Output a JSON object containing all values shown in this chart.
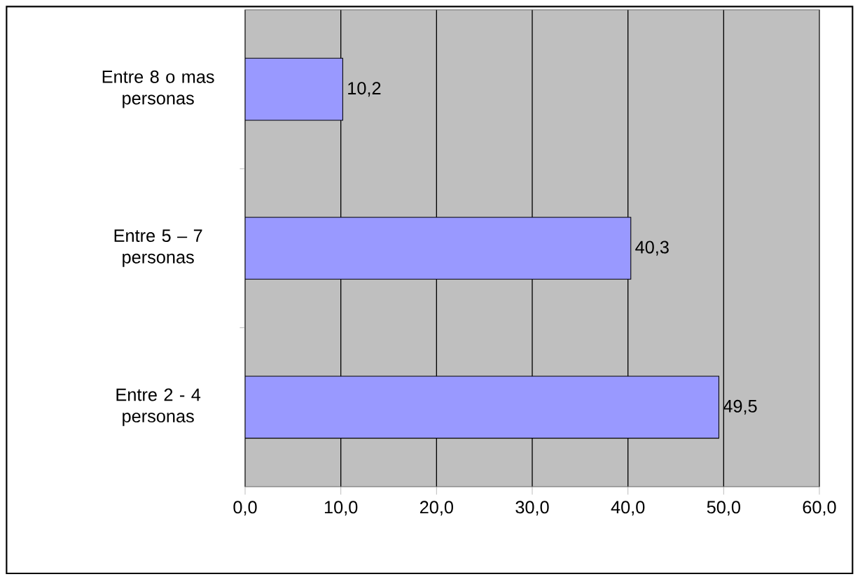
{
  "chart_data": {
    "type": "bar",
    "orientation": "horizontal",
    "categories": [
      "Entre 8 o mas personas",
      "Entre 5 – 7 personas",
      "Entre 2 - 4 personas"
    ],
    "values": [
      10.2,
      40.3,
      49.5
    ],
    "value_labels": [
      "10,2",
      "40,3",
      "49,5"
    ],
    "color": "#9999ff",
    "xlim": [
      0,
      60
    ],
    "xticks": [
      {
        "value": 0,
        "label": "0,0"
      },
      {
        "value": 10,
        "label": "10,0"
      },
      {
        "value": 20,
        "label": "20,0"
      },
      {
        "value": 30,
        "label": "30,0"
      },
      {
        "value": 40,
        "label": "40,0"
      },
      {
        "value": 50,
        "label": "50,0"
      },
      {
        "value": 60,
        "label": "60,0"
      }
    ],
    "grid": "x"
  }
}
